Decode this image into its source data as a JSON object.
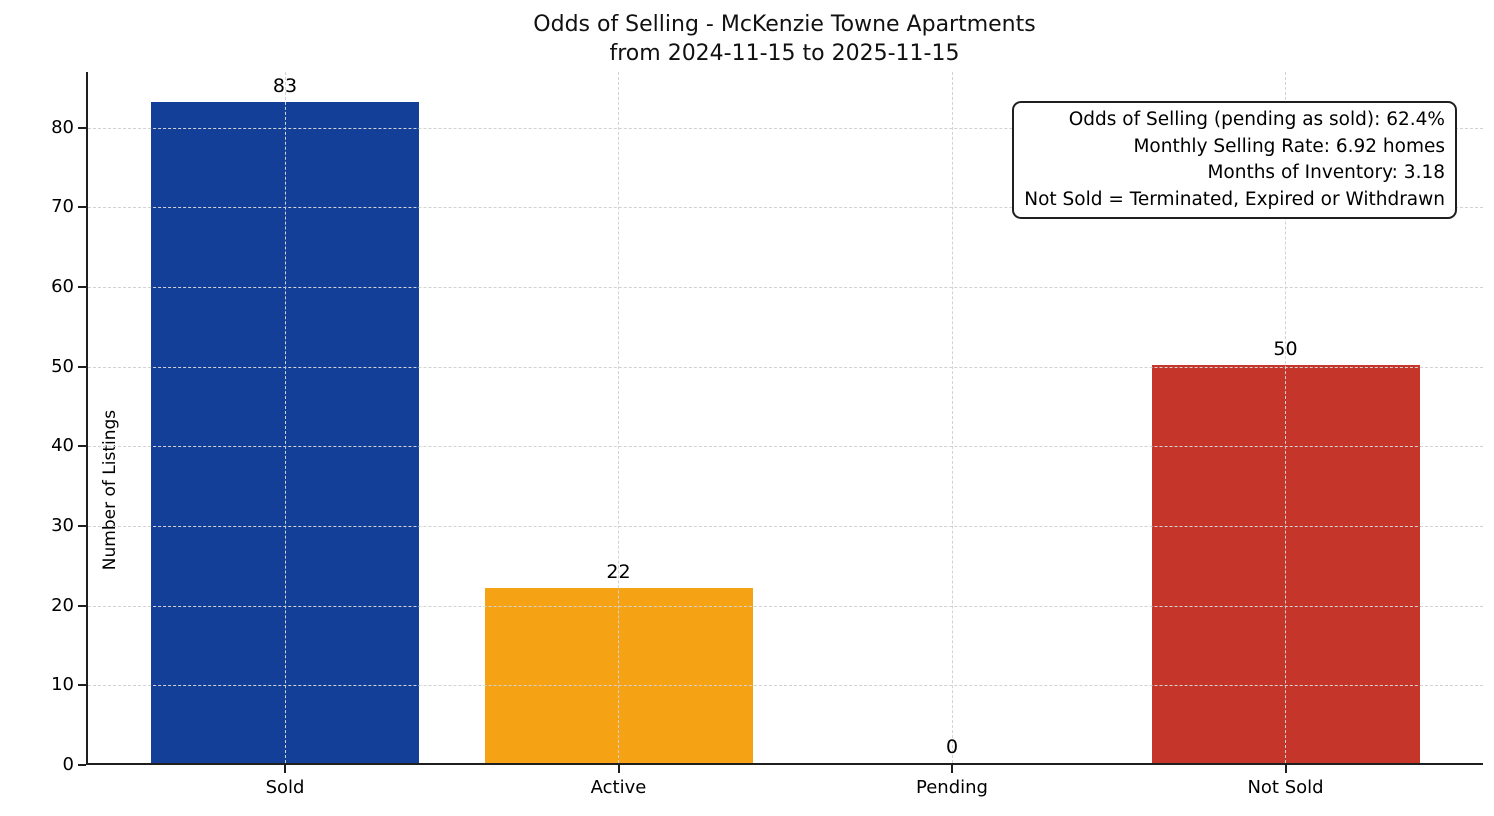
{
  "title": {
    "line1": "Odds of Selling - McKenzie Towne Apartments",
    "line2": "from 2024-11-15 to 2025-11-15"
  },
  "ylabel": "Number of Listings",
  "annotation": {
    "lines": [
      "Odds of Selling (pending as sold): 62.4%",
      "Monthly Selling Rate: 6.92 homes",
      "Months of Inventory: 3.18",
      "Not Sold = Terminated, Expired or Withdrawn"
    ]
  },
  "colors": {
    "sold_bar": "#133f99",
    "active_bar": "#f5a214",
    "pending_bar": "#888888",
    "not_sold_bar": "#c63529",
    "axis": "#1f1f1f",
    "grid": "#d2d2d2",
    "background": "#ffffff"
  },
  "chart_data": {
    "type": "bar",
    "title": "Odds of Selling - McKenzie Towne Apartments\nfrom 2024-11-15 to 2025-11-15",
    "categories": [
      "Sold",
      "Active",
      "Pending",
      "Not Sold"
    ],
    "values": [
      83,
      22,
      0,
      50
    ],
    "value_labels": [
      "83",
      "22",
      "0",
      "50"
    ],
    "bar_colors": [
      "#133f99",
      "#f5a214",
      "#888888",
      "#c63529"
    ],
    "xlabel": "",
    "ylabel": "Number of Listings",
    "ylim": [
      0,
      87
    ],
    "yticks": [
      0,
      10,
      20,
      30,
      40,
      50,
      60,
      70,
      80
    ],
    "grid": {
      "visible": true,
      "style": "dashed",
      "axes": "both",
      "above_bars": true
    },
    "legend": "none",
    "annotation_lines": [
      "Odds of Selling (pending as sold): 62.4%",
      "Monthly Selling Rate: 6.92 homes",
      "Months of Inventory: 3.18",
      "Not Sold = Terminated, Expired or Withdrawn"
    ]
  }
}
